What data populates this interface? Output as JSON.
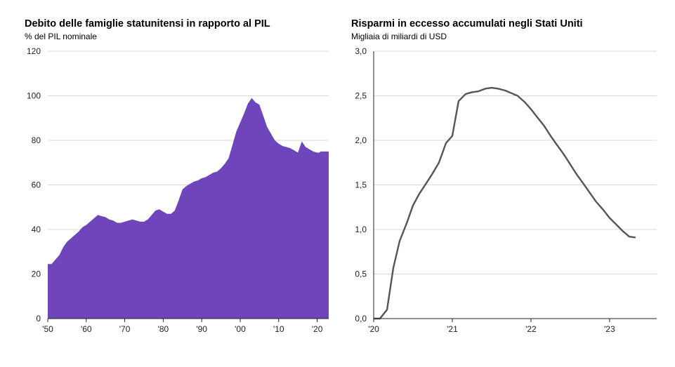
{
  "colors": {
    "area": "#6e45bb",
    "line": "#555555",
    "grid": "#d9d9d9",
    "axis": "#222222"
  },
  "chart_data": [
    {
      "type": "area",
      "title": "Debito delle famiglie statunitensi in rapporto al PIL",
      "subtitle": "% del PIL nominale",
      "grid": true,
      "ylim": [
        0,
        120
      ],
      "xlim": [
        1950,
        2023
      ],
      "yticks": [
        0,
        20,
        40,
        60,
        80,
        100,
        120
      ],
      "ytick_labels": [
        "0",
        "20",
        "40",
        "60",
        "80",
        "100",
        "120"
      ],
      "xticks": [
        1950,
        1960,
        1970,
        1980,
        1990,
        2000,
        2010,
        2020
      ],
      "xtick_labels": [
        "'50",
        "'60",
        "'70",
        "'80",
        "'90",
        "'00",
        "'10",
        "'20"
      ],
      "series": [
        {
          "x": [
            1950,
            1951,
            1952,
            1953,
            1954,
            1955,
            1956,
            1957,
            1958,
            1959,
            1960,
            1961,
            1962,
            1963,
            1964,
            1965,
            1966,
            1967,
            1968,
            1969,
            1970,
            1971,
            1972,
            1973,
            1974,
            1975,
            1976,
            1977,
            1978,
            1979,
            1980,
            1981,
            1982,
            1983,
            1984,
            1985,
            1986,
            1987,
            1988,
            1989,
            1990,
            1991,
            1992,
            1993,
            1994,
            1995,
            1996,
            1997,
            1998,
            1999,
            2000,
            2001,
            2002,
            2003,
            2004,
            2005,
            2006,
            2007,
            2008,
            2009,
            2010,
            2011,
            2012,
            2013,
            2014,
            2015,
            2016,
            2017,
            2018,
            2019,
            2020,
            2020.5,
            2021,
            2022,
            2023
          ],
          "values": [
            24.5,
            24.5,
            26.5,
            28.5,
            32,
            34.5,
            36,
            37.5,
            39,
            41,
            42,
            43.5,
            45,
            46.5,
            46,
            45.5,
            44.5,
            44,
            43,
            43,
            43.5,
            44,
            44.5,
            44,
            43.5,
            43.5,
            44.5,
            46.5,
            48.5,
            49,
            48,
            47,
            47,
            48.5,
            53,
            58,
            59.5,
            60.5,
            61.5,
            62,
            63,
            63.5,
            64.5,
            65.5,
            66,
            67.5,
            69.5,
            72,
            78,
            84,
            88,
            92,
            96.5,
            99,
            97,
            96,
            91,
            86,
            83,
            80,
            78.5,
            77.5,
            77,
            76.5,
            75.5,
            74.5,
            79.5,
            77,
            76,
            75,
            74.5,
            74.5,
            75,
            75,
            75
          ]
        }
      ]
    },
    {
      "type": "line",
      "title": "Risparmi in eccesso accumulati negli Stati Uniti",
      "subtitle": "Migliaia di miliardi di USD",
      "grid": true,
      "ylim": [
        0,
        3.0
      ],
      "xlim": [
        2020,
        2023.6
      ],
      "yticks": [
        0,
        0.5,
        1.0,
        1.5,
        2.0,
        2.5,
        3.0
      ],
      "ytick_labels": [
        "0,0",
        "0,5",
        "1,0",
        "1,5",
        "2,0",
        "2,5",
        "3,0"
      ],
      "xticks": [
        2020,
        2021,
        2022,
        2023
      ],
      "xtick_labels": [
        "'20",
        "'21",
        "'22",
        "'23"
      ],
      "series": [
        {
          "x": [
            2020.0,
            2020.08,
            2020.17,
            2020.25,
            2020.33,
            2020.42,
            2020.5,
            2020.58,
            2020.67,
            2020.75,
            2020.83,
            2020.92,
            2021.0,
            2021.08,
            2021.17,
            2021.25,
            2021.33,
            2021.42,
            2021.5,
            2021.58,
            2021.67,
            2021.75,
            2021.83,
            2021.92,
            2022.0,
            2022.08,
            2022.17,
            2022.25,
            2022.33,
            2022.42,
            2022.5,
            2022.58,
            2022.67,
            2022.75,
            2022.83,
            2022.92,
            2023.0,
            2023.08,
            2023.17,
            2023.25,
            2023.33
          ],
          "values": [
            0.0,
            0.0,
            0.1,
            0.57,
            0.87,
            1.07,
            1.27,
            1.4,
            1.52,
            1.63,
            1.75,
            1.97,
            2.05,
            2.44,
            2.52,
            2.54,
            2.55,
            2.58,
            2.59,
            2.58,
            2.56,
            2.53,
            2.5,
            2.43,
            2.35,
            2.26,
            2.16,
            2.05,
            1.95,
            1.84,
            1.73,
            1.62,
            1.51,
            1.41,
            1.31,
            1.22,
            1.13,
            1.06,
            0.98,
            0.92,
            0.91
          ]
        }
      ]
    }
  ]
}
